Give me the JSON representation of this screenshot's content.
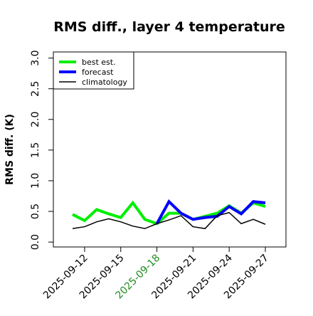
{
  "chart_data": {
    "type": "line",
    "title": "RMS diff., layer 4 temperature",
    "y_label": "RMS diff. (K)",
    "x": [
      "2025-09-11",
      "2025-09-12",
      "2025-09-13",
      "2025-09-14",
      "2025-09-15",
      "2025-09-16",
      "2025-09-17",
      "2025-09-18",
      "2025-09-19",
      "2025-09-20",
      "2025-09-21",
      "2025-09-22",
      "2025-09-23",
      "2025-09-24",
      "2025-09-25",
      "2025-09-26",
      "2025-09-27"
    ],
    "series": [
      {
        "name": "best est.",
        "color": "#00ee00",
        "width": 4,
        "values": [
          0.45,
          0.35,
          0.53,
          0.46,
          0.4,
          0.64,
          0.37,
          0.3,
          0.47,
          0.47,
          0.37,
          0.42,
          0.47,
          0.59,
          0.47,
          0.64,
          0.58
        ]
      },
      {
        "name": "forecast",
        "color": "#0000ff",
        "width": 4,
        "values": [
          null,
          null,
          null,
          null,
          null,
          null,
          null,
          0.3,
          0.66,
          0.47,
          0.37,
          0.4,
          0.42,
          0.58,
          0.46,
          0.66,
          0.64
        ]
      },
      {
        "name": "climatology",
        "color": "#000000",
        "width": 1.5,
        "values": [
          0.22,
          0.25,
          0.33,
          0.38,
          0.33,
          0.26,
          0.22,
          0.3,
          0.36,
          0.43,
          0.25,
          0.22,
          0.43,
          0.48,
          0.3,
          0.37,
          0.29
        ]
      }
    ],
    "ylim": [
      -0.08,
      3.1
    ],
    "yticks": [
      {
        "value": 0,
        "label": "0.0"
      },
      0.5,
      {
        "value": 1,
        "label": "1.0"
      },
      1.5,
      {
        "value": 2,
        "label": "2.0"
      },
      2.5,
      {
        "value": 3,
        "label": "3.0"
      }
    ],
    "xticks": [
      "2025-09-12",
      "2025-09-15",
      "2025-09-18",
      "2025-09-21",
      "2025-09-24",
      "2025-09-27"
    ],
    "xtick_colors": [
      "#000000",
      "#000000",
      "#228b22",
      "#000000",
      "#000000",
      "#000000"
    ],
    "legend": "top-left"
  }
}
